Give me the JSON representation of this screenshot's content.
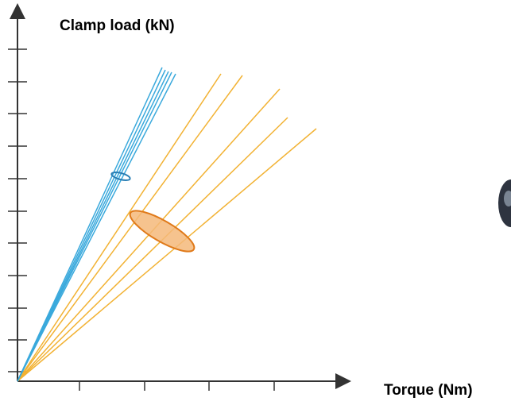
{
  "axes": {
    "y_label": "Clamp load (kN)",
    "x_label": "Torque (Nm)"
  }
}
